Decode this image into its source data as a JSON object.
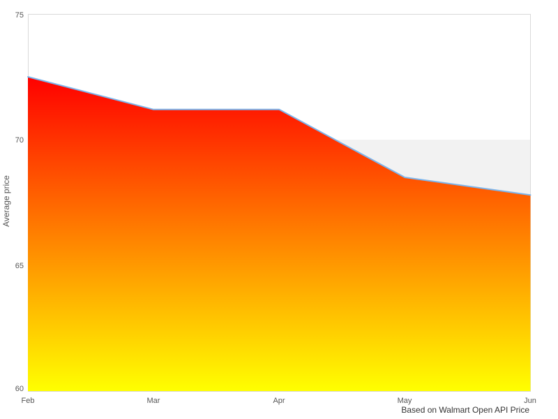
{
  "chart_data": {
    "type": "area",
    "title": "",
    "x": [
      "Feb",
      "Mar",
      "Apr",
      "May",
      "Jun"
    ],
    "series": [
      {
        "name": "Average price",
        "values": [
          72.5,
          71.2,
          71.2,
          68.5,
          67.8
        ]
      }
    ],
    "xlabel": "",
    "ylabel": "Average price",
    "ylim": [
      60,
      75
    ],
    "yticks": [
      60,
      65,
      70,
      75
    ],
    "caption": "Based on Walmart Open API Price",
    "legend": "none",
    "grid": "alternate-horizontal-bands",
    "colors": {
      "line": "#7cb5ec",
      "gradient_top": "#ff0000",
      "gradient_bottom": "#ffff00",
      "band": "#f2f2f2",
      "border": "#d9d9d9"
    }
  }
}
